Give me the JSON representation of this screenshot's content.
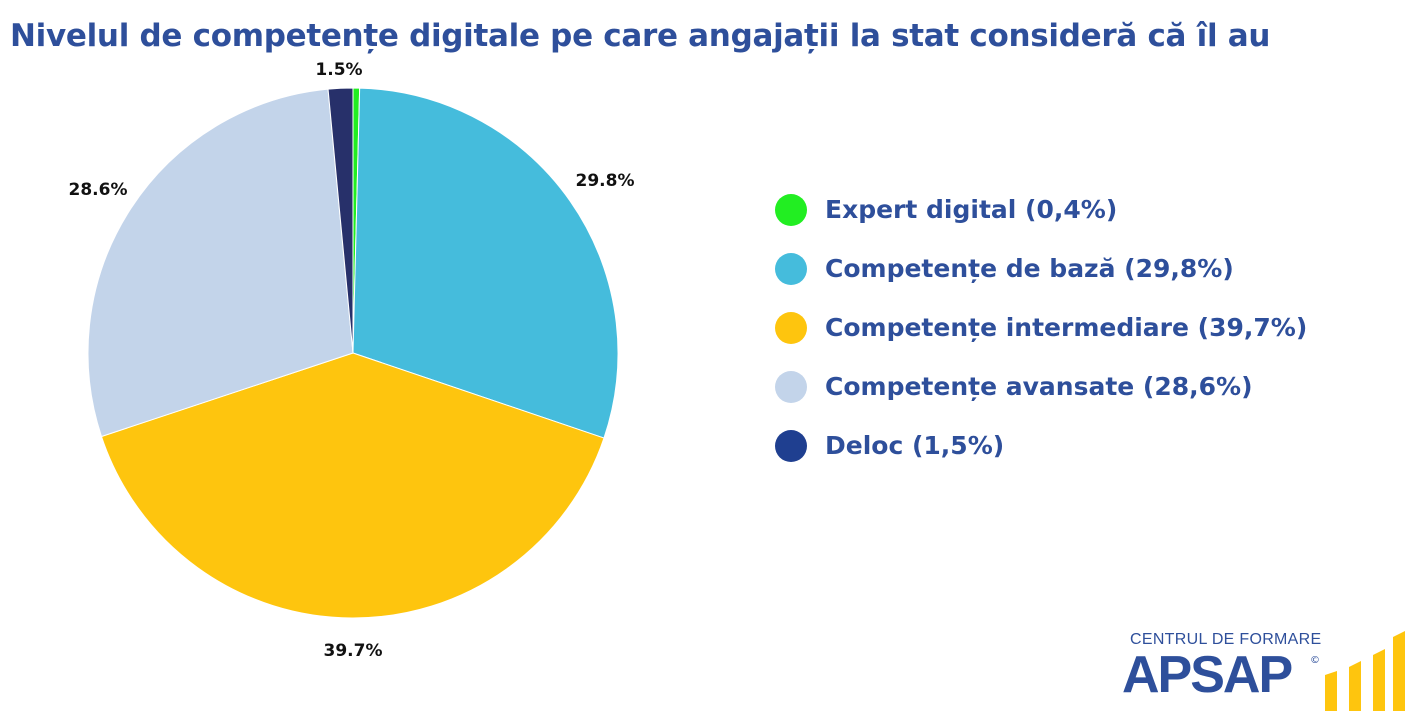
{
  "chart_data": {
    "type": "pie",
    "title": "Nivelul de competențe digitale pe care angajații la stat consideră că îl au",
    "slices": [
      {
        "label": "Expert digital (0,4%)",
        "value": 0.4,
        "color": "#22ee22",
        "data_label": ""
      },
      {
        "label": "Competențe de bază (29,8%)",
        "value": 29.8,
        "color": "#45bcdc",
        "data_label": "29.8%"
      },
      {
        "label": "Competențe intermediare (39,7%)",
        "value": 39.7,
        "color": "#fec50e",
        "data_label": "39.7%"
      },
      {
        "label": "Competențe avansate (28,6%)",
        "value": 28.6,
        "color": "#c3d4ea",
        "data_label": "28.6%"
      },
      {
        "label": "Deloc (1,5%)",
        "value": 1.5,
        "color": "#27306a",
        "data_label": "1.5%"
      }
    ],
    "legend_position": "right"
  },
  "legend_colors": [
    "#22ee22",
    "#45bcdc",
    "#fec50e",
    "#c3d4ea",
    "#1f3f90"
  ],
  "logo": {
    "top_text": "CENTRUL DE FORMARE",
    "main_text": "APSAP",
    "mark": "©",
    "bar_color": "#fec50e"
  }
}
